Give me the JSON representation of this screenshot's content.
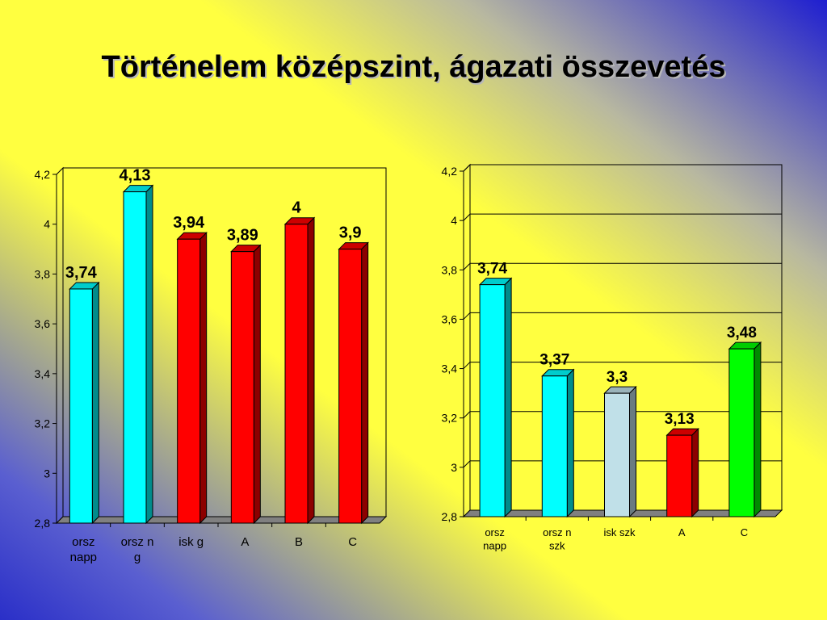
{
  "title": "Történelem középszint, ágazati összevetés",
  "chart_data": [
    {
      "type": "bar",
      "title": "",
      "categories": [
        [
          "orsz",
          "napp"
        ],
        [
          "orsz n",
          "g"
        ],
        [
          "isk g"
        ],
        [
          "A"
        ],
        [
          "B"
        ],
        [
          "C"
        ]
      ],
      "values": [
        3.74,
        4.13,
        3.94,
        3.89,
        4,
        3.9
      ],
      "value_labels": [
        "3,74",
        "4,13",
        "3,94",
        "3,89",
        "4",
        "3,9"
      ],
      "colors": [
        "#00ffff",
        "#00ffff",
        "#ff0000",
        "#ff0000",
        "#ff0000",
        "#ff0000"
      ],
      "ylim": [
        2.8,
        4.2
      ],
      "yticks": [
        "2,8",
        "3",
        "3,2",
        "3,4",
        "3,6",
        "3,8",
        "4",
        "4,2"
      ],
      "grid": false,
      "legend": "none",
      "style": "3d"
    },
    {
      "type": "bar",
      "title": "",
      "categories": [
        [
          "orsz",
          "napp"
        ],
        [
          "orsz n",
          "szk"
        ],
        [
          "isk szk"
        ],
        [
          "A"
        ],
        [
          "C"
        ]
      ],
      "values": [
        3.74,
        3.37,
        3.3,
        3.13,
        3.48
      ],
      "value_labels": [
        "3,74",
        "3,37",
        "3,3",
        "3,13",
        "3,48"
      ],
      "colors": [
        "#00ffff",
        "#00ffff",
        "#c0e0e8",
        "#ff0000",
        "#00ff00"
      ],
      "ylim": [
        2.8,
        4.2
      ],
      "yticks": [
        "2,8",
        "3",
        "3,2",
        "3,4",
        "3,6",
        "3,8",
        "4",
        "4,2"
      ],
      "grid": true,
      "legend": "none",
      "style": "3d"
    }
  ]
}
